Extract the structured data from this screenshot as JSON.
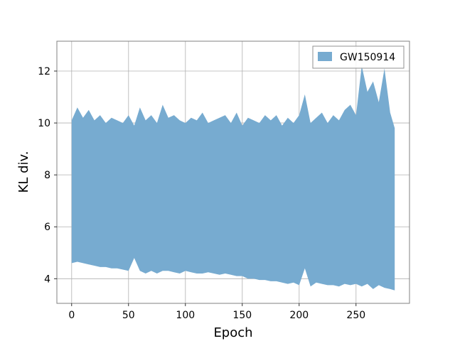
{
  "chart_data": {
    "type": "area",
    "title": "",
    "xlabel": "Epoch",
    "ylabel": "KL div.",
    "xlim": [
      -13,
      297
    ],
    "ylim": [
      3.05,
      13.15
    ],
    "xticks": [
      0,
      50,
      100,
      150,
      200,
      250
    ],
    "yticks": [
      4,
      6,
      8,
      10,
      12
    ],
    "grid": true,
    "legend_position": "top-right",
    "series": [
      {
        "name": "GW150914",
        "color": "#77abd0",
        "x": [
          0,
          5,
          10,
          15,
          20,
          25,
          30,
          35,
          40,
          45,
          50,
          55,
          60,
          65,
          70,
          75,
          80,
          85,
          90,
          95,
          100,
          105,
          110,
          115,
          120,
          125,
          130,
          135,
          140,
          145,
          150,
          155,
          160,
          165,
          170,
          175,
          180,
          185,
          190,
          195,
          200,
          205,
          210,
          215,
          220,
          225,
          230,
          235,
          240,
          245,
          250,
          255,
          260,
          265,
          270,
          275,
          280,
          284
        ],
        "upper": [
          10.1,
          10.6,
          10.2,
          10.5,
          10.1,
          10.3,
          10.0,
          10.2,
          10.1,
          10.0,
          10.3,
          9.9,
          10.6,
          10.1,
          10.3,
          10.0,
          10.7,
          10.2,
          10.3,
          10.1,
          10.0,
          10.2,
          10.1,
          10.4,
          10.0,
          10.1,
          10.2,
          10.3,
          10.0,
          10.4,
          9.9,
          10.2,
          10.1,
          10.0,
          10.3,
          10.1,
          10.3,
          9.9,
          10.2,
          10.0,
          10.3,
          11.1,
          10.0,
          10.2,
          10.4,
          10.0,
          10.3,
          10.1,
          10.5,
          10.7,
          10.3,
          12.2,
          11.2,
          11.6,
          10.8,
          12.1,
          10.4,
          9.8
        ],
        "lower": [
          4.6,
          4.65,
          4.6,
          4.55,
          4.5,
          4.45,
          4.45,
          4.4,
          4.4,
          4.35,
          4.3,
          4.8,
          4.3,
          4.2,
          4.3,
          4.2,
          4.3,
          4.3,
          4.25,
          4.2,
          4.3,
          4.25,
          4.2,
          4.2,
          4.25,
          4.2,
          4.15,
          4.2,
          4.15,
          4.1,
          4.1,
          4.0,
          4.0,
          3.95,
          3.95,
          3.9,
          3.9,
          3.85,
          3.8,
          3.85,
          3.75,
          4.4,
          3.7,
          3.85,
          3.8,
          3.75,
          3.75,
          3.7,
          3.8,
          3.75,
          3.8,
          3.7,
          3.8,
          3.6,
          3.75,
          3.65,
          3.6,
          3.55
        ]
      }
    ]
  }
}
